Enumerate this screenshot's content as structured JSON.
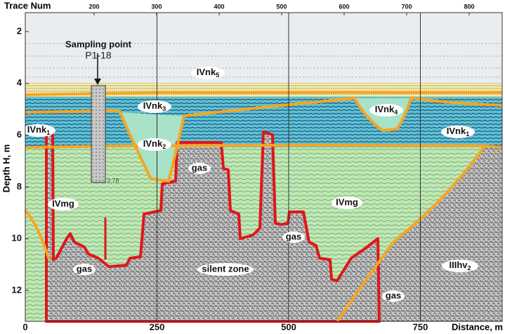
{
  "top_axis": {
    "title": "Trace Num",
    "ticks": [
      200,
      300,
      400,
      500,
      600,
      700,
      800
    ]
  },
  "left_axis": {
    "title": "Depth H, m",
    "ticks": [
      2,
      4,
      6,
      8,
      10,
      12
    ]
  },
  "bottom_axis": {
    "title": "Distance, m",
    "ticks": [
      0,
      250,
      500,
      750
    ]
  },
  "sampling_point": {
    "title": "Sampling point",
    "id": "P1-18",
    "depth_label": "3.78"
  },
  "units": [
    {
      "base": "IVnk",
      "sub": "5"
    },
    {
      "base": "IVnk",
      "sub": "3"
    },
    {
      "base": "IVnk",
      "sub": "4"
    },
    {
      "base": "IVnk",
      "sub": "1"
    },
    {
      "base": "IVnk",
      "sub": "1"
    },
    {
      "base": "IVnk",
      "sub": "2"
    },
    {
      "base": "IVmg"
    },
    {
      "base": "IVmg"
    },
    {
      "base": "IIIhv",
      "sub": "2"
    }
  ],
  "annotations": [
    "gas",
    "gas",
    "gas",
    "gas",
    "silent zone"
  ]
}
